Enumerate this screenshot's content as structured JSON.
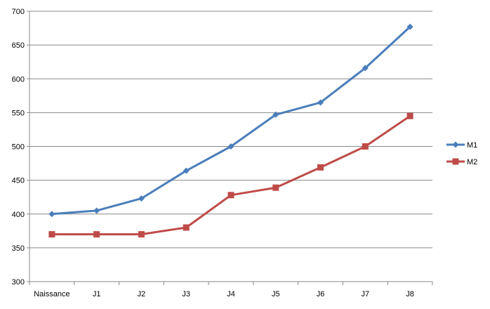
{
  "chart_data": {
    "type": "line",
    "title": "",
    "xlabel": "",
    "ylabel": "",
    "categories": [
      "Naissance",
      "J1",
      "J2",
      "J3",
      "J4",
      "J5",
      "J6",
      "J7",
      "J8"
    ],
    "ylim": [
      300,
      700
    ],
    "yticks": [
      300,
      350,
      400,
      450,
      500,
      550,
      600,
      650,
      700
    ],
    "grid": "horizontal",
    "legend_position": "right",
    "series": [
      {
        "name": "M1",
        "color": "#4a7ebb",
        "marker": "diamond",
        "values": [
          400,
          405,
          423,
          464,
          500,
          547,
          565,
          616,
          677
        ]
      },
      {
        "name": "M2",
        "color": "#be4b48",
        "marker": "square",
        "values": [
          370,
          370,
          370,
          380,
          428,
          439,
          469,
          500,
          545
        ]
      }
    ]
  }
}
